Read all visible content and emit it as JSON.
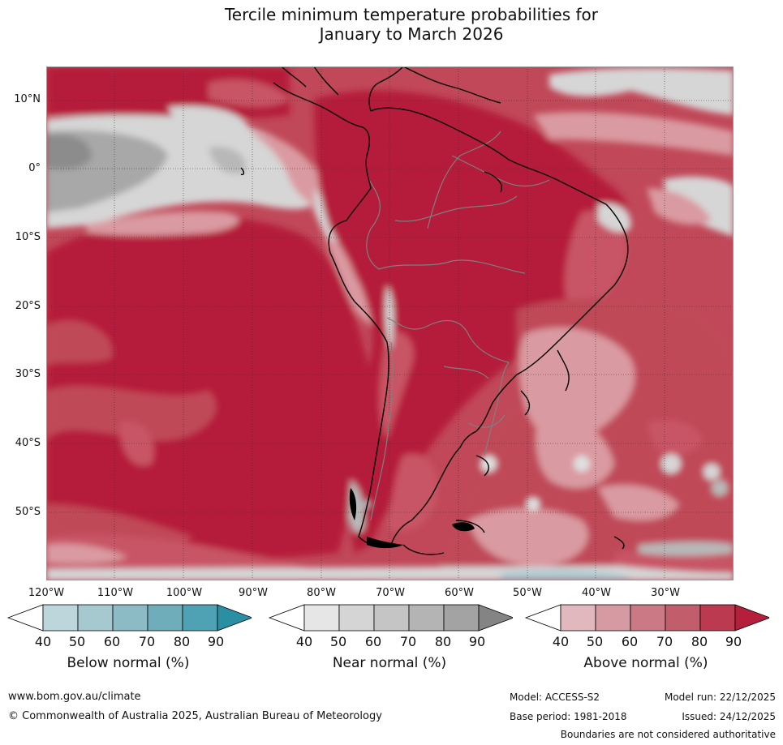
{
  "title": {
    "line1": "Tercile minimum temperature probabilities for",
    "line2": "January to March 2026"
  },
  "map": {
    "lat_labels": [
      "10°N",
      "0°",
      "10°S",
      "20°S",
      "30°S",
      "40°S",
      "50°S"
    ],
    "lon_labels": [
      "120°W",
      "110°W",
      "100°W",
      "90°W",
      "80°W",
      "70°W",
      "60°W",
      "50°W",
      "40°W",
      "30°W"
    ],
    "colors": {
      "above_dark": "#b51f3b",
      "above_mid": "#c85565",
      "above_light": "#da9aa1",
      "near_light": "#d9d9d9",
      "near_mid": "#b8b8b8",
      "near_dark": "#8c8c8c",
      "below_light": "#a9c9d1",
      "land_outline": "#000000",
      "border": "#808080"
    }
  },
  "colorbars": [
    {
      "title": "Below normal (%)",
      "ticks": [
        "40",
        "50",
        "60",
        "70",
        "80",
        "90"
      ],
      "colors": [
        "#ffffff",
        "#bdd6dc",
        "#a6c9d0",
        "#8dbbc5",
        "#6fadbb",
        "#4fa2b3",
        "#2b8fa4"
      ]
    },
    {
      "title": "Near normal (%)",
      "ticks": [
        "40",
        "50",
        "60",
        "70",
        "80",
        "90"
      ],
      "colors": [
        "#ffffff",
        "#e6e6e6",
        "#d5d5d5",
        "#c5c5c5",
        "#b4b4b4",
        "#a3a3a3",
        "#848484"
      ]
    },
    {
      "title": "Above normal (%)",
      "ticks": [
        "40",
        "50",
        "60",
        "70",
        "80",
        "90"
      ],
      "colors": [
        "#ffffff",
        "#e0b8bd",
        "#d59aa2",
        "#cb7a85",
        "#c25e6b",
        "#bb3a4f",
        "#b51f3b"
      ]
    }
  ],
  "footer": {
    "url": "www.bom.gov.au/climate",
    "copyright": "© Commonwealth of Australia 2025, Australian Bureau of Meteorology",
    "model": "Model: ACCESS-S2",
    "model_run": "Model run: 22/12/2025",
    "base_period": "Base period: 1981-2018",
    "issued": "Issued: 24/12/2025",
    "disclaimer": "Boundaries are not considered authoritative"
  }
}
